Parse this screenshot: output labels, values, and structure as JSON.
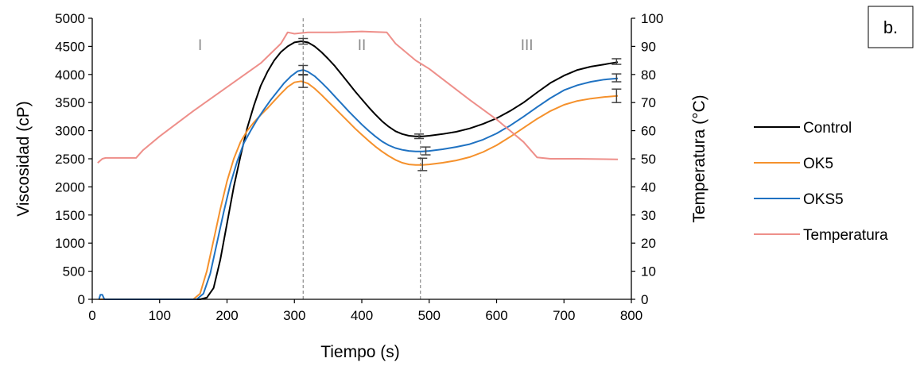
{
  "chart_data": {
    "type": "line",
    "panel_label": "b.",
    "xlabel": "Tiempo (s)",
    "ylabel": "Viscosidad (cP)",
    "y2label": "Temperatura (°C)",
    "xlim": [
      0,
      800
    ],
    "ylim": [
      0,
      5000
    ],
    "y2lim": [
      0,
      100
    ],
    "x_ticks": [
      0,
      100,
      200,
      300,
      400,
      500,
      600,
      700,
      800
    ],
    "y_ticks": [
      0,
      500,
      1000,
      1500,
      2000,
      2500,
      3000,
      3500,
      4000,
      4500,
      5000
    ],
    "y2_ticks": [
      0,
      10,
      20,
      30,
      40,
      50,
      60,
      70,
      80,
      90,
      100
    ],
    "grid": false,
    "legend_position": "right",
    "zones": [
      {
        "label": "I",
        "x": 160
      },
      {
        "label": "II",
        "x": 400
      },
      {
        "label": "III",
        "x": 645
      }
    ],
    "vlines": [
      313,
      487
    ],
    "series": [
      {
        "name": "Control",
        "color": "#000000",
        "axis": "left",
        "points": [
          [
            10,
            0
          ],
          [
            100,
            0
          ],
          [
            160,
            0
          ],
          [
            170,
            30
          ],
          [
            180,
            200
          ],
          [
            190,
            700
          ],
          [
            200,
            1350
          ],
          [
            210,
            2000
          ],
          [
            220,
            2550
          ],
          [
            230,
            3050
          ],
          [
            240,
            3450
          ],
          [
            250,
            3800
          ],
          [
            260,
            4050
          ],
          [
            270,
            4250
          ],
          [
            280,
            4400
          ],
          [
            290,
            4500
          ],
          [
            300,
            4570
          ],
          [
            310,
            4590
          ],
          [
            320,
            4570
          ],
          [
            330,
            4500
          ],
          [
            340,
            4400
          ],
          [
            350,
            4280
          ],
          [
            360,
            4150
          ],
          [
            370,
            4000
          ],
          [
            380,
            3850
          ],
          [
            390,
            3700
          ],
          [
            400,
            3560
          ],
          [
            410,
            3420
          ],
          [
            420,
            3290
          ],
          [
            430,
            3170
          ],
          [
            440,
            3070
          ],
          [
            450,
            2990
          ],
          [
            460,
            2940
          ],
          [
            470,
            2910
          ],
          [
            480,
            2900
          ],
          [
            490,
            2900
          ],
          [
            500,
            2910
          ],
          [
            520,
            2940
          ],
          [
            540,
            2980
          ],
          [
            560,
            3040
          ],
          [
            580,
            3120
          ],
          [
            600,
            3220
          ],
          [
            620,
            3350
          ],
          [
            640,
            3500
          ],
          [
            660,
            3680
          ],
          [
            680,
            3850
          ],
          [
            700,
            3980
          ],
          [
            720,
            4080
          ],
          [
            740,
            4140
          ],
          [
            760,
            4180
          ],
          [
            780,
            4220
          ]
        ]
      },
      {
        "name": "OK5",
        "color": "#f5912c",
        "axis": "left",
        "points": [
          [
            10,
            0
          ],
          [
            100,
            0
          ],
          [
            150,
            0
          ],
          [
            160,
            100
          ],
          [
            170,
            500
          ],
          [
            180,
            1050
          ],
          [
            190,
            1600
          ],
          [
            200,
            2100
          ],
          [
            210,
            2500
          ],
          [
            220,
            2800
          ],
          [
            230,
            3000
          ],
          [
            240,
            3150
          ],
          [
            250,
            3280
          ],
          [
            260,
            3400
          ],
          [
            270,
            3530
          ],
          [
            280,
            3660
          ],
          [
            290,
            3780
          ],
          [
            300,
            3860
          ],
          [
            310,
            3880
          ],
          [
            320,
            3840
          ],
          [
            330,
            3750
          ],
          [
            340,
            3640
          ],
          [
            350,
            3520
          ],
          [
            360,
            3400
          ],
          [
            370,
            3280
          ],
          [
            380,
            3160
          ],
          [
            390,
            3040
          ],
          [
            400,
            2930
          ],
          [
            410,
            2820
          ],
          [
            420,
            2720
          ],
          [
            430,
            2630
          ],
          [
            440,
            2550
          ],
          [
            450,
            2480
          ],
          [
            460,
            2430
          ],
          [
            470,
            2400
          ],
          [
            480,
            2390
          ],
          [
            490,
            2390
          ],
          [
            500,
            2400
          ],
          [
            520,
            2430
          ],
          [
            540,
            2470
          ],
          [
            560,
            2530
          ],
          [
            580,
            2620
          ],
          [
            600,
            2740
          ],
          [
            620,
            2890
          ],
          [
            640,
            3050
          ],
          [
            660,
            3210
          ],
          [
            680,
            3350
          ],
          [
            700,
            3460
          ],
          [
            720,
            3530
          ],
          [
            740,
            3570
          ],
          [
            760,
            3600
          ],
          [
            780,
            3620
          ]
        ]
      },
      {
        "name": "OKS5",
        "color": "#1f72c2",
        "axis": "left",
        "points": [
          [
            10,
            0
          ],
          [
            12,
            80
          ],
          [
            15,
            80
          ],
          [
            18,
            0
          ],
          [
            100,
            0
          ],
          [
            155,
            0
          ],
          [
            165,
            100
          ],
          [
            175,
            450
          ],
          [
            185,
            1000
          ],
          [
            195,
            1550
          ],
          [
            205,
            2050
          ],
          [
            215,
            2450
          ],
          [
            225,
            2780
          ],
          [
            235,
            3000
          ],
          [
            245,
            3200
          ],
          [
            255,
            3380
          ],
          [
            265,
            3550
          ],
          [
            275,
            3700
          ],
          [
            285,
            3850
          ],
          [
            295,
            3970
          ],
          [
            305,
            4060
          ],
          [
            313,
            4080
          ],
          [
            320,
            4050
          ],
          [
            330,
            3970
          ],
          [
            340,
            3860
          ],
          [
            350,
            3740
          ],
          [
            360,
            3610
          ],
          [
            370,
            3480
          ],
          [
            380,
            3350
          ],
          [
            390,
            3230
          ],
          [
            400,
            3110
          ],
          [
            410,
            3000
          ],
          [
            420,
            2900
          ],
          [
            430,
            2810
          ],
          [
            440,
            2740
          ],
          [
            450,
            2690
          ],
          [
            460,
            2660
          ],
          [
            470,
            2640
          ],
          [
            480,
            2630
          ],
          [
            490,
            2630
          ],
          [
            500,
            2640
          ],
          [
            520,
            2670
          ],
          [
            540,
            2710
          ],
          [
            560,
            2760
          ],
          [
            580,
            2840
          ],
          [
            600,
            2950
          ],
          [
            620,
            3090
          ],
          [
            640,
            3250
          ],
          [
            660,
            3420
          ],
          [
            680,
            3580
          ],
          [
            700,
            3720
          ],
          [
            720,
            3810
          ],
          [
            740,
            3870
          ],
          [
            760,
            3910
          ],
          [
            780,
            3930
          ]
        ]
      },
      {
        "name": "Temperatura",
        "color": "#ee8f8a",
        "axis": "right",
        "points": [
          [
            8,
            48.5
          ],
          [
            15,
            50
          ],
          [
            20,
            50.3
          ],
          [
            65,
            50.3
          ],
          [
            75,
            53
          ],
          [
            100,
            58
          ],
          [
            150,
            67
          ],
          [
            200,
            75.5
          ],
          [
            250,
            84
          ],
          [
            280,
            91
          ],
          [
            290,
            95
          ],
          [
            300,
            94.5
          ],
          [
            320,
            95
          ],
          [
            360,
            95
          ],
          [
            400,
            95.3
          ],
          [
            437,
            95
          ],
          [
            450,
            91
          ],
          [
            480,
            85
          ],
          [
            500,
            82
          ],
          [
            560,
            71
          ],
          [
            600,
            64
          ],
          [
            640,
            56
          ],
          [
            660,
            50.5
          ],
          [
            680,
            50
          ],
          [
            720,
            50
          ],
          [
            780,
            49.8
          ]
        ]
      }
    ],
    "error_bars": [
      {
        "series": "Control",
        "x": 313,
        "y": 4590,
        "err": 50
      },
      {
        "series": "Control",
        "x": 485,
        "y": 2900,
        "err": 40
      },
      {
        "series": "Control",
        "x": 778,
        "y": 4230,
        "err": 50
      },
      {
        "series": "OKS5",
        "x": 313,
        "y": 4080,
        "err": 80
      },
      {
        "series": "OKS5",
        "x": 495,
        "y": 2640,
        "err": 70
      },
      {
        "series": "OKS5",
        "x": 778,
        "y": 3940,
        "err": 70
      },
      {
        "series": "OK5",
        "x": 313,
        "y": 3880,
        "err": 110
      },
      {
        "series": "OK5",
        "x": 490,
        "y": 2400,
        "err": 110
      },
      {
        "series": "OK5",
        "x": 778,
        "y": 3620,
        "err": 120
      }
    ]
  }
}
